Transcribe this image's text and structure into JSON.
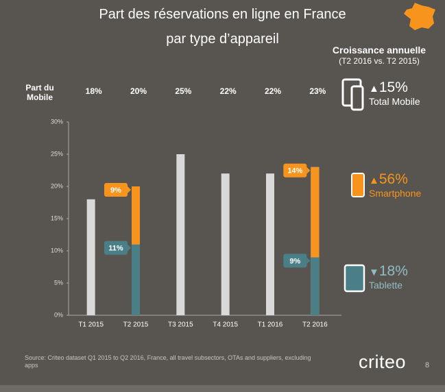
{
  "chart_data": {
    "type": "bar",
    "title": "Part des réservations en ligne en France",
    "subtitle": "par type d’appareil",
    "share_label": "Part du Mobile",
    "categories": [
      "T1 2015",
      "T2 2015",
      "T3 2015",
      "T4 2015",
      "T1 2016",
      "T2 2016"
    ],
    "ylim": [
      0,
      30
    ],
    "yticks": [
      {
        "value": 0,
        "label": "0%"
      },
      {
        "value": 5,
        "label": "5%"
      },
      {
        "value": 10,
        "label": "10%"
      },
      {
        "value": 15,
        "label": "15%"
      },
      {
        "value": 20,
        "label": "20%"
      },
      {
        "value": 25,
        "label": "25%"
      },
      {
        "value": 30,
        "label": "30%"
      }
    ],
    "grid": false,
    "series": [
      {
        "name": "Total Mobile",
        "color": "#d9d9d9",
        "values": [
          18,
          20,
          25,
          22,
          22,
          23
        ],
        "value_labels": [
          "18%",
          "20%",
          "25%",
          "22%",
          "22%",
          "23%"
        ]
      },
      {
        "name": "Tablette",
        "color": "#4a7f87",
        "stack": true,
        "values": [
          null,
          11,
          null,
          null,
          null,
          9
        ],
        "value_labels": [
          null,
          "11%",
          null,
          null,
          null,
          "9%"
        ]
      },
      {
        "name": "Smartphone",
        "color": "#f7941d",
        "stack": true,
        "values": [
          null,
          9,
          null,
          null,
          null,
          14
        ],
        "value_labels": [
          null,
          "9%",
          null,
          null,
          null,
          "14%"
        ]
      }
    ]
  },
  "growth": {
    "title": "Croissance annuelle",
    "period": "(T2 2016 vs. T2 2015)",
    "items": [
      {
        "direction": "▲",
        "change": "15%",
        "label": "Total Mobile",
        "color": "#ffffff"
      },
      {
        "direction": "▲",
        "change": "56%",
        "label": "Smartphone",
        "color": "#f7941d"
      },
      {
        "direction": "▼",
        "change": "18%",
        "label": "Tablette",
        "color": "#8fbcc4"
      }
    ]
  },
  "footer": {
    "source": "Source: Criteo dataset Q1 2015 to Q2 2016, France, all travel subsectors, OTAs and suppliers, excluding apps",
    "brand": "criteo",
    "page": "8"
  }
}
